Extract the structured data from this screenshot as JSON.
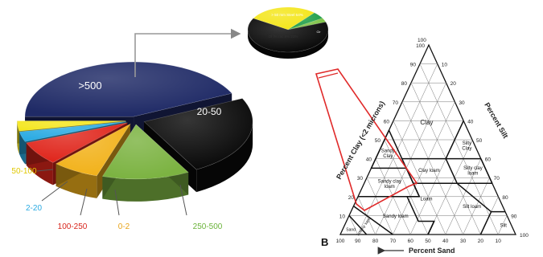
{
  "chart_data": [
    {
      "type": "pie",
      "style": "3d-exploded",
      "slices": [
        {
          "label": ">500",
          "value": 43,
          "color": "#1f2a66",
          "label_color": "#ffffff"
        },
        {
          "label": "20-50",
          "value": 24,
          "color": "#0a0a0a",
          "label_color": "#ffffff"
        },
        {
          "label": "250-500",
          "value": 13,
          "color": "#7cb342",
          "label_color": "#6bb33a"
        },
        {
          "label": "0-2",
          "value": 7,
          "color": "#f2b21b",
          "label_color": "#e8a317"
        },
        {
          "label": "100-250",
          "value": 7,
          "color": "#e0261c",
          "label_color": "#d8251c"
        },
        {
          "label": "2-20",
          "value": 3,
          "color": "#29aae2",
          "label_color": "#29aae2"
        },
        {
          "label": "50-100",
          "value": 3,
          "color": "#f4e61c",
          "label_color": "#e0c800"
        }
      ]
    },
    {
      "type": "pie",
      "style": "inset",
      "slices": [
        {
          "label": "> 50 mm Steel 64%",
          "value": 64,
          "color": "#0a0a0a",
          "label_color": "#ffffff"
        },
        {
          "label": "Of f% rac 8% 21%",
          "value": 28,
          "color": "#f4e61c",
          "label_color": "#333333"
        },
        {
          "label": "Clr",
          "value": 5,
          "color": "#1f9e48",
          "label_color": "#ffffff"
        },
        {
          "label": "",
          "value": 3,
          "color": "#7cc243",
          "label_color": "#ffffff"
        }
      ]
    }
  ],
  "triangle": {
    "panel_label": "B",
    "axis_labels": {
      "left": "Percent Clay (<2 microns)",
      "right": "Percent Silt",
      "bottom": "Percent Sand"
    },
    "ticks": [
      "10",
      "20",
      "30",
      "40",
      "50",
      "60",
      "70",
      "80",
      "90",
      "100"
    ],
    "apex_label": "100",
    "classes": [
      {
        "id": "clay",
        "label": "Clay"
      },
      {
        "id": "silty-clay",
        "label": "Silty\nClay"
      },
      {
        "id": "sandy-clay",
        "label": "Sandy\nClay"
      },
      {
        "id": "clay-loam",
        "label": "Clay loam"
      },
      {
        "id": "silty-clay-loam",
        "label": "Silty clay\nloam"
      },
      {
        "id": "sandy-clay-loam",
        "label": "Sandy clay\nloam"
      },
      {
        "id": "loam",
        "label": "Loam"
      },
      {
        "id": "silt-loam",
        "label": "Silt loam"
      },
      {
        "id": "sandy-loam",
        "label": "Sandy loam"
      },
      {
        "id": "loamy-sand",
        "label": "Loamy sand"
      },
      {
        "id": "sand",
        "label": "Sand"
      },
      {
        "id": "silt",
        "label": "Silt"
      }
    ]
  }
}
